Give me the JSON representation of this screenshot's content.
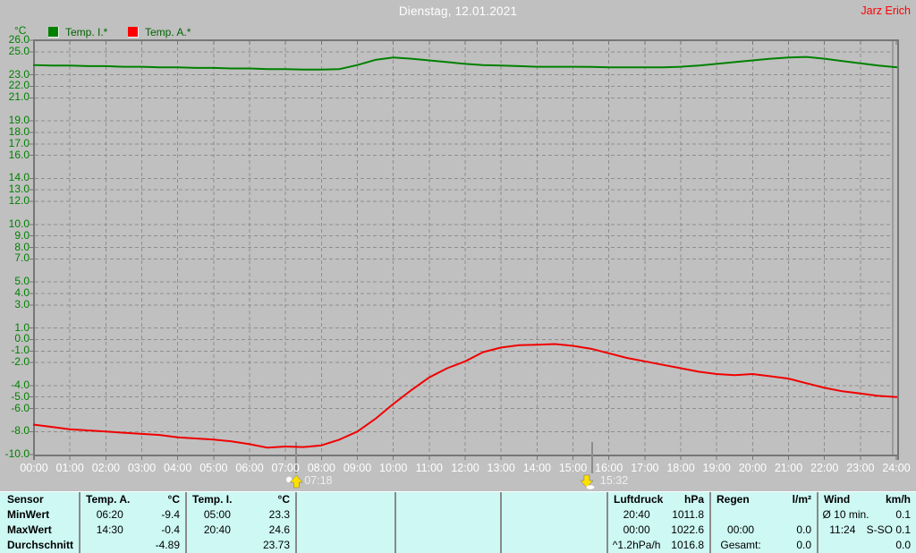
{
  "header": {
    "title": "Dienstag, 12.01.2021",
    "user": "Jarz Erich"
  },
  "colors": {
    "background": "#C0C0C0",
    "footer_background": "#CDF8F4",
    "grid": "#8E8E8E",
    "frame": "#767676",
    "temp_i_line": "#008000",
    "temp_a_line": "#F00000",
    "y_label": "#008000",
    "x_label": "#FFFFFF",
    "title_text": "#FFFFFF",
    "user_text": "#FF0000",
    "sun_marker_yellow": "#FFE000"
  },
  "legend": {
    "unit": "°C",
    "items": [
      {
        "label": "Temp. I.*",
        "color": "#008000"
      },
      {
        "label": "Temp. A.*",
        "color": "#FF0000"
      }
    ]
  },
  "chart_data": {
    "type": "line",
    "title": "Dienstag, 12.01.2021",
    "ylabel": "°C",
    "xlabel": "",
    "ylim": [
      -10,
      26
    ],
    "grid": true,
    "legend_position": "top-left",
    "y_ticks_shown": [
      "26.0",
      "25.0",
      "23.0",
      "22.0",
      "21.0",
      "19.0",
      "18.0",
      "17.0",
      "16.0",
      "14.0",
      "13.0",
      "12.0",
      "10.0",
      "9.0",
      "8.0",
      "7.0",
      "5.0",
      "4.0",
      "3.0",
      "1.0",
      "0.0",
      "-1.0",
      "-2.0",
      "-4.0",
      "-5.0",
      "-6.0",
      "-8.0",
      "-10.0"
    ],
    "x_ticks": [
      "00:00",
      "01:00",
      "02:00",
      "03:00",
      "04:00",
      "05:00",
      "06:00",
      "07:00",
      "08:00",
      "09:00",
      "10:00",
      "11:00",
      "12:00",
      "13:00",
      "14:00",
      "15:00",
      "16:00",
      "17:00",
      "18:00",
      "19:00",
      "20:00",
      "21:00",
      "22:00",
      "23:00",
      "24:00"
    ],
    "step_hours": 0.5,
    "series": [
      {
        "name": "Temp. I.*",
        "color": "#008000",
        "values": [
          23.85,
          23.8,
          23.8,
          23.75,
          23.75,
          23.7,
          23.7,
          23.65,
          23.65,
          23.6,
          23.6,
          23.55,
          23.55,
          23.5,
          23.5,
          23.45,
          23.45,
          23.5,
          23.85,
          24.3,
          24.5,
          24.4,
          24.25,
          24.1,
          23.95,
          23.85,
          23.8,
          23.75,
          23.7,
          23.7,
          23.7,
          23.68,
          23.65,
          23.65,
          23.65,
          23.65,
          23.7,
          23.8,
          23.95,
          24.1,
          24.25,
          24.4,
          24.5,
          24.55,
          24.4,
          24.2,
          24.0,
          23.8,
          23.65
        ]
      },
      {
        "name": "Temp. A.*",
        "color": "#F00000",
        "values": [
          -7.4,
          -7.6,
          -7.8,
          -7.9,
          -8.0,
          -8.1,
          -8.2,
          -8.3,
          -8.5,
          -8.6,
          -8.7,
          -8.85,
          -9.1,
          -9.4,
          -9.3,
          -9.35,
          -9.2,
          -8.7,
          -8.0,
          -6.9,
          -5.6,
          -4.4,
          -3.3,
          -2.5,
          -1.9,
          -1.1,
          -0.7,
          -0.5,
          -0.45,
          -0.4,
          -0.55,
          -0.8,
          -1.2,
          -1.6,
          -1.9,
          -2.2,
          -2.5,
          -2.8,
          -3.0,
          -3.1,
          -3.0,
          -3.2,
          -3.4,
          -3.8,
          -4.2,
          -4.5,
          -4.7,
          -4.9,
          -5.0
        ]
      }
    ],
    "sun_markers": [
      {
        "type": "sunrise",
        "time": "07:18"
      },
      {
        "type": "sunset",
        "time": "15:32"
      }
    ]
  },
  "footer": {
    "row_labels": [
      "Sensor",
      "MinWert",
      "MaxWert",
      "Durchschnitt"
    ],
    "groups": [
      {
        "header": "Temp. A.",
        "unit": "°C",
        "rows": [
          [
            "06:20",
            "-9.4"
          ],
          [
            "14:30",
            "-0.4"
          ],
          [
            "",
            "-4.89"
          ]
        ]
      },
      {
        "header": "Temp. I.",
        "unit": "°C",
        "rows": [
          [
            "05:00",
            "23.3"
          ],
          [
            "20:40",
            "24.6"
          ],
          [
            "",
            "23.73"
          ]
        ]
      },
      {
        "header": "",
        "unit": "",
        "rows": [
          [
            "",
            ""
          ],
          [
            "",
            ""
          ],
          [
            "",
            ""
          ]
        ]
      },
      {
        "header": "",
        "unit": "",
        "rows": [
          [
            "",
            ""
          ],
          [
            "",
            ""
          ],
          [
            "",
            ""
          ]
        ]
      },
      {
        "header": "",
        "unit": "",
        "rows": [
          [
            "",
            ""
          ],
          [
            "",
            ""
          ],
          [
            "",
            ""
          ]
        ]
      },
      {
        "header": "Luftdruck",
        "unit": "hPa",
        "rows": [
          [
            "20:40",
            "1011.8"
          ],
          [
            "00:00",
            "1022.6"
          ],
          [
            "^1.2hPa/h",
            "1016.8"
          ]
        ]
      },
      {
        "header": "Regen",
        "unit": "l/m²",
        "rows": [
          [
            "",
            ""
          ],
          [
            "00:00",
            "0.0"
          ],
          [
            "Gesamt:",
            "0.0"
          ]
        ]
      },
      {
        "header": "Wind",
        "unit": "km/h",
        "rows": [
          [
            "Ø 10 min.",
            "0.1"
          ],
          [
            "11:24",
            "S-SO 0.1"
          ],
          [
            "",
            "0.0"
          ]
        ]
      }
    ]
  }
}
